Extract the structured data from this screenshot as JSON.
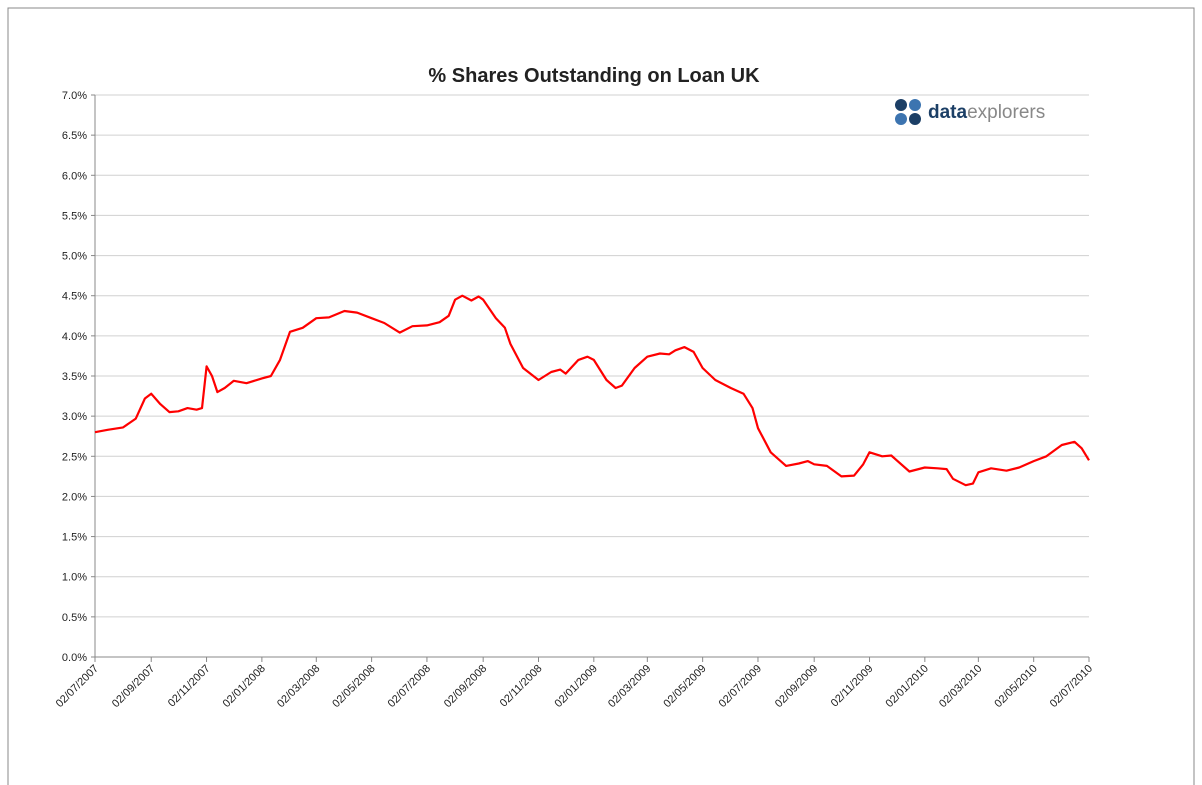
{
  "chart_data": {
    "type": "line",
    "title": "% Shares Outstanding on Loan UK",
    "logo": [
      "data",
      "explorers"
    ],
    "xlim": [
      "02/07/2007",
      "02/07/2010"
    ],
    "xticks": [
      "02/07/2007",
      "02/09/2007",
      "02/11/2007",
      "02/01/2008",
      "02/03/2008",
      "02/05/2008",
      "02/07/2008",
      "02/09/2008",
      "02/11/2008",
      "02/01/2009",
      "02/03/2009",
      "02/05/2009",
      "02/07/2009",
      "02/09/2009",
      "02/11/2009",
      "02/01/2010",
      "02/03/2010",
      "02/05/2010",
      "02/07/2010"
    ],
    "ylim": [
      0,
      7
    ],
    "yticks": [
      {
        "value": 0,
        "label": "0.0%"
      },
      {
        "value": 0.5,
        "label": "0.5%"
      },
      {
        "value": 1,
        "label": "1.0%"
      },
      {
        "value": 1.5,
        "label": "1.5%"
      },
      {
        "value": 2,
        "label": "2.0%"
      },
      {
        "value": 2.5,
        "label": "2.5%"
      },
      {
        "value": 3,
        "label": "3.0%"
      },
      {
        "value": 3.5,
        "label": "3.5%"
      },
      {
        "value": 4,
        "label": "4.0%"
      },
      {
        "value": 4.5,
        "label": "4.5%"
      },
      {
        "value": 5,
        "label": "5.0%"
      },
      {
        "value": 5.5,
        "label": "5.5%"
      },
      {
        "value": 6,
        "label": "6.0%"
      },
      {
        "value": 6.5,
        "label": "6.5%"
      },
      {
        "value": 7,
        "label": "7.0%"
      }
    ],
    "grid": true,
    "color": "#ff0000",
    "x": [
      "02/07/2007",
      "16/07/2007",
      "02/08/2007",
      "16/08/2007",
      "26/08/2007",
      "02/09/2007",
      "12/09/2007",
      "22/09/2007",
      "02/10/2007",
      "12/10/2007",
      "22/10/2007",
      "28/10/2007",
      "02/11/2007",
      "08/11/2007",
      "14/11/2007",
      "22/11/2007",
      "02/12/2007",
      "16/12/2007",
      "02/01/2008",
      "12/01/2008",
      "22/01/2008",
      "02/02/2008",
      "16/02/2008",
      "02/03/2008",
      "16/03/2008",
      "02/04/2008",
      "16/04/2008",
      "02/05/2008",
      "16/05/2008",
      "02/06/2008",
      "16/06/2008",
      "02/07/2008",
      "16/07/2008",
      "26/07/2008",
      "02/08/2008",
      "10/08/2008",
      "20/08/2008",
      "28/08/2008",
      "02/09/2008",
      "16/09/2008",
      "26/09/2008",
      "02/10/2008",
      "16/10/2008",
      "02/11/2008",
      "16/11/2008",
      "26/11/2008",
      "02/12/2008",
      "16/12/2008",
      "26/12/2008",
      "02/01/2009",
      "16/01/2009",
      "26/01/2009",
      "02/02/2009",
      "16/02/2009",
      "02/03/2009",
      "16/03/2009",
      "26/03/2009",
      "02/04/2009",
      "12/04/2009",
      "22/04/2009",
      "02/05/2009",
      "16/05/2009",
      "02/06/2009",
      "16/06/2009",
      "26/06/2009",
      "02/07/2009",
      "16/07/2009",
      "02/08/2009",
      "16/08/2009",
      "26/08/2009",
      "02/09/2009",
      "16/09/2009",
      "02/10/2009",
      "16/10/2009",
      "26/10/2009",
      "02/11/2009",
      "16/11/2009",
      "26/11/2009",
      "02/12/2009",
      "16/12/2009",
      "02/01/2010",
      "16/01/2010",
      "26/01/2010",
      "02/02/2010",
      "16/02/2010",
      "24/02/2010",
      "02/03/2010",
      "16/03/2010",
      "02/04/2010",
      "16/04/2010",
      "02/05/2010",
      "16/05/2010",
      "02/06/2010",
      "16/06/2010",
      "24/06/2010",
      "02/07/2010"
    ],
    "values": [
      2.8,
      2.83,
      2.86,
      2.97,
      3.22,
      3.28,
      3.15,
      3.05,
      3.06,
      3.1,
      3.08,
      3.1,
      3.62,
      3.5,
      3.3,
      3.35,
      3.44,
      3.41,
      3.47,
      3.5,
      3.7,
      4.05,
      4.1,
      4.22,
      4.23,
      4.31,
      4.29,
      4.22,
      4.16,
      4.04,
      4.12,
      4.13,
      4.17,
      4.25,
      4.45,
      4.5,
      4.44,
      4.49,
      4.45,
      4.22,
      4.1,
      3.9,
      3.6,
      3.45,
      3.55,
      3.58,
      3.53,
      3.7,
      3.74,
      3.7,
      3.45,
      3.35,
      3.38,
      3.6,
      3.74,
      3.78,
      3.77,
      3.82,
      3.86,
      3.8,
      3.6,
      3.45,
      3.35,
      3.28,
      3.1,
      2.85,
      2.55,
      2.38,
      2.41,
      2.44,
      2.4,
      2.38,
      2.25,
      2.26,
      2.4,
      2.55,
      2.5,
      2.51,
      2.45,
      2.31,
      2.36,
      2.35,
      2.34,
      2.22,
      2.14,
      2.16,
      2.3,
      2.35,
      2.32,
      2.36,
      2.44,
      2.5,
      2.64,
      2.68,
      2.6,
      2.45
    ]
  }
}
